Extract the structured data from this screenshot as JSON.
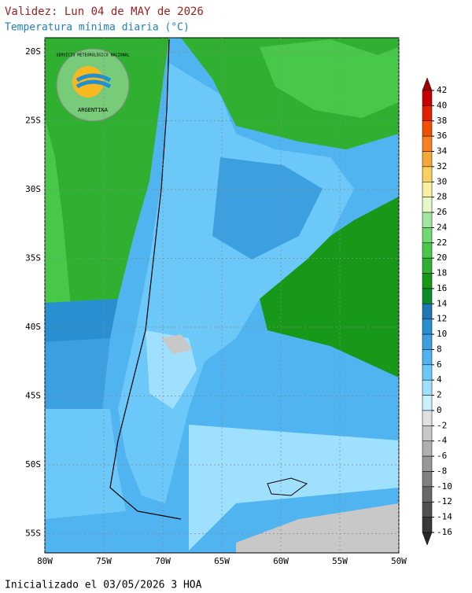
{
  "header": {
    "title": "Validez: Lun 04 de MAY de 2026",
    "subtitle": "Temperatura mínima diaria (°C)"
  },
  "logo": {
    "top": "SERVICIO METEOROLÓGICO NACIONAL",
    "bottom": "ARGENTINA"
  },
  "map": {
    "lat_labels": [
      "20S",
      "25S",
      "30S",
      "35S",
      "40S",
      "45S",
      "50S",
      "55S"
    ],
    "lon_labels": [
      "80W",
      "75W",
      "70W",
      "65W",
      "60W",
      "55W",
      "50W"
    ]
  },
  "legend": {
    "ticks": [
      42,
      40,
      38,
      36,
      34,
      32,
      30,
      28,
      26,
      24,
      22,
      20,
      18,
      16,
      14,
      12,
      10,
      8,
      6,
      4,
      2,
      0,
      -2,
      -4,
      -6,
      -8,
      -10,
      -12,
      -14,
      -16
    ],
    "colors": [
      "#a00000",
      "#c80000",
      "#e02000",
      "#f05000",
      "#f88020",
      "#f8a838",
      "#f8d060",
      "#f8f0a0",
      "#e8f8c8",
      "#a0e8a0",
      "#70d870",
      "#48c848",
      "#30b030",
      "#189818",
      "#0a8a2a",
      "#1e78b4",
      "#2890d0",
      "#3ca0e0",
      "#50b4f0",
      "#6cc8f8",
      "#a0e0ff",
      "#c8f0ff",
      "#e0e0e0",
      "#c8c8c8",
      "#b0b0b0",
      "#989898",
      "#808080",
      "#686868",
      "#505050",
      "#383838",
      "#282828"
    ]
  },
  "footer": {
    "text": "Inicializado el 03/05/2026 3 HOA"
  }
}
